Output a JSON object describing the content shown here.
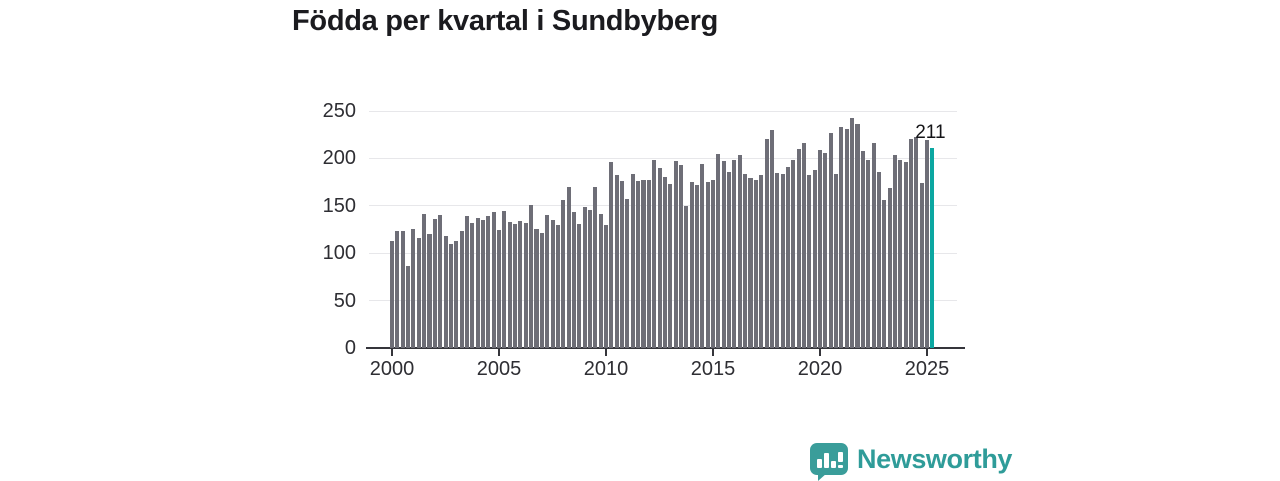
{
  "title": "Födda per kvartal i Sundbyberg",
  "annotation": {
    "last_value_label": "211"
  },
  "logo": {
    "text": "Newsworthy",
    "icon": "speech-bubble-bar-chart-icon"
  },
  "colors": {
    "bar": "#6e6e77",
    "highlight": "#0ba7a1",
    "gridline": "#e7e7ea",
    "axis": "#35353b",
    "text": "#2e2e33",
    "title_text": "#1b1b1f",
    "logo_teal": "#2f9c99"
  },
  "chart_data": {
    "type": "bar",
    "title": "Födda per kvartal i Sundbyberg",
    "xlabel": "",
    "ylabel": "",
    "x_start": "2000 Q1",
    "x_end": "2025 Q2",
    "x_tick_labels": [
      "2000",
      "2005",
      "2010",
      "2015",
      "2020",
      "2025"
    ],
    "x_ticks_every_n_bars": 20,
    "y_ticks": [
      0,
      50,
      100,
      150,
      200,
      250
    ],
    "ylim": [
      0,
      250
    ],
    "grid": true,
    "legend": false,
    "highlight_last": true,
    "last_point": {
      "x": "2025 Q2",
      "value": 211,
      "label": "211"
    },
    "values": [
      113,
      123,
      123,
      86,
      126,
      116,
      141,
      120,
      136,
      140,
      118,
      110,
      113,
      123,
      139,
      132,
      137,
      135,
      139,
      144,
      124,
      145,
      133,
      131,
      134,
      132,
      151,
      126,
      121,
      140,
      135,
      130,
      156,
      170,
      144,
      131,
      149,
      146,
      170,
      141,
      130,
      196,
      183,
      176,
      157,
      184,
      176,
      177,
      177,
      198,
      190,
      180,
      173,
      197,
      193,
      150,
      175,
      172,
      194,
      175,
      177,
      205,
      197,
      186,
      198,
      204,
      184,
      179,
      177,
      183,
      220,
      230,
      185,
      184,
      191,
      198,
      210,
      216,
      183,
      188,
      209,
      206,
      227,
      184,
      233,
      231,
      243,
      236,
      208,
      198,
      216,
      186,
      156,
      169,
      204,
      198,
      196,
      221,
      223,
      174,
      219,
      211
    ]
  }
}
